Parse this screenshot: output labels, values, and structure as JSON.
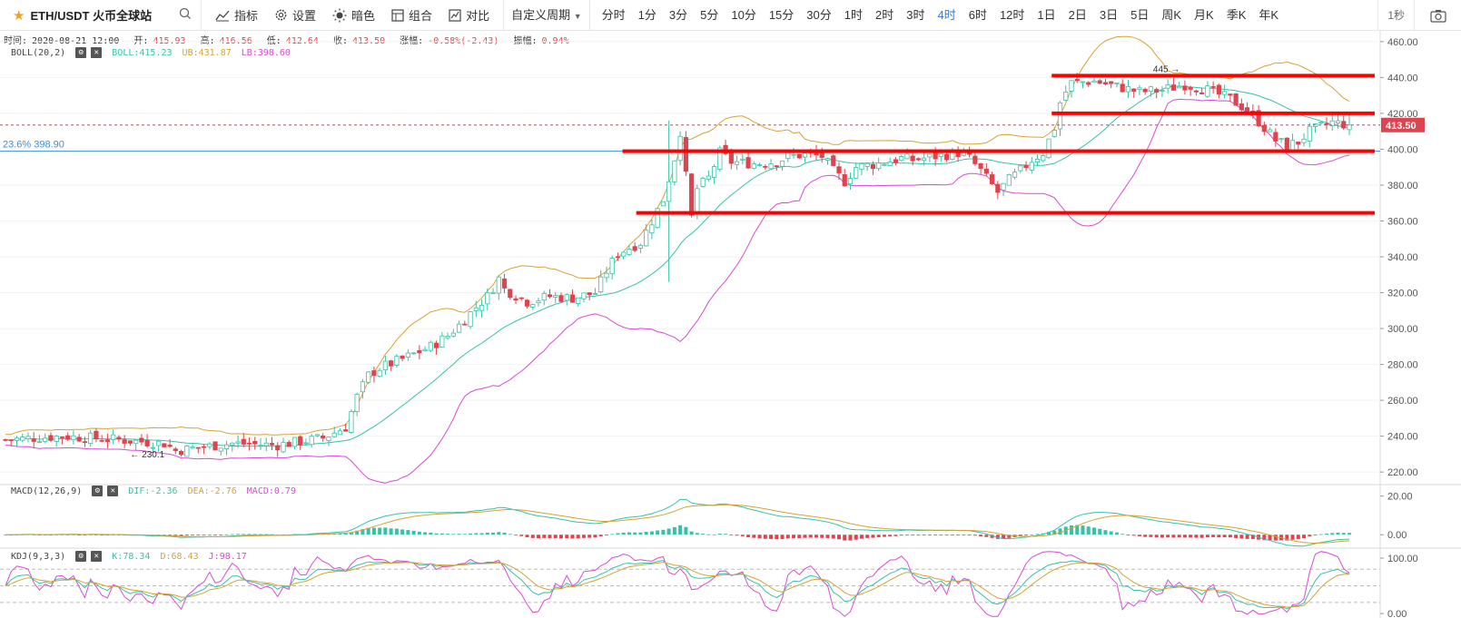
{
  "toolbar": {
    "symbol": "ETH/USDT 火币全球站",
    "buttons": [
      {
        "label": "指标",
        "icon": "indicator-icon"
      },
      {
        "label": "设置",
        "icon": "gear-icon"
      },
      {
        "label": "暗色",
        "icon": "sun-icon"
      },
      {
        "label": "组合",
        "icon": "layout-icon"
      },
      {
        "label": "对比",
        "icon": "compare-icon"
      }
    ],
    "custom_period": "自定义周期",
    "periods": [
      "分时",
      "1分",
      "3分",
      "5分",
      "10分",
      "15分",
      "30分",
      "1时",
      "2时",
      "3时",
      "4时",
      "6时",
      "12时",
      "1日",
      "2日",
      "3日",
      "5日",
      "周K",
      "月K",
      "季K",
      "年K"
    ],
    "active_period": "4时",
    "interval": "1秒"
  },
  "ohlc": {
    "time_label": "时间:",
    "time": "2020-08-21 12:00",
    "open_label": "开:",
    "open": "415.93",
    "high_label": "高:",
    "high": "416.56",
    "low_label": "低:",
    "low": "412.64",
    "close_label": "收:",
    "close": "413.50",
    "change_label": "涨幅:",
    "change": "-0.58%(-2.43)",
    "amp_label": "振幅:",
    "amp": "0.94%"
  },
  "boll": {
    "name": "BOLL(20,2)",
    "mid": "BOLL:415.23",
    "ub": "UB:431.87",
    "lb": "LB:398.60"
  },
  "macd": {
    "name": "MACD(12,26,9)",
    "dif": "DIF:-2.36",
    "dea": "DEA:-2.76",
    "macd": "MACD:0.79"
  },
  "kdj": {
    "name": "KDJ(9,3,3)",
    "k": "K:78.34",
    "d": "D:68.43",
    "j": "J:98.17"
  },
  "chart_data": {
    "type": "candlestick",
    "main_axis": {
      "ticks": [
        220,
        240,
        260,
        280,
        300,
        320,
        340,
        360,
        380,
        400,
        420,
        440,
        460
      ],
      "tick_labels": [
        "220.00",
        "240.00",
        "260.00",
        "280.00",
        "300.00",
        "320.00",
        "340.00",
        "360.00",
        "380.00",
        "400.00",
        "420.00",
        "440.00",
        "460.00"
      ],
      "range": [
        213,
        466
      ]
    },
    "last_price": {
      "value": 413.5,
      "label": "413.50"
    },
    "fib_line": {
      "value": 398.9,
      "label": "23.6% 398.90"
    },
    "annotations": [
      {
        "label": "445 →",
        "value": 445
      },
      {
        "label": "← 230.1",
        "value": 230.1
      }
    ],
    "horizontal_lines": [
      {
        "value": 441,
        "x_from": 0.762,
        "x_to": 1.0
      },
      {
        "value": 420,
        "x_from": 0.762,
        "x_to": 1.0
      },
      {
        "value": 398.9,
        "x_from": 0.451,
        "x_to": 1.0
      },
      {
        "value": 364.5,
        "x_from": 0.461,
        "x_to": 1.0
      }
    ],
    "close_path": [
      [
        0,
        238
      ],
      [
        10,
        240
      ],
      [
        20,
        238
      ],
      [
        28,
        236
      ],
      [
        30,
        232
      ],
      [
        40,
        236
      ],
      [
        48,
        235
      ],
      [
        56,
        239
      ],
      [
        60,
        245
      ],
      [
        62,
        262
      ],
      [
        64,
        274
      ],
      [
        66,
        278
      ],
      [
        70,
        283
      ],
      [
        75,
        290
      ],
      [
        78,
        296
      ],
      [
        80,
        302
      ],
      [
        83,
        312
      ],
      [
        85,
        318
      ],
      [
        87,
        328
      ],
      [
        88,
        322
      ],
      [
        92,
        315
      ],
      [
        96,
        318
      ],
      [
        100,
        317
      ],
      [
        104,
        320
      ],
      [
        106,
        332
      ],
      [
        108,
        342
      ],
      [
        112,
        348
      ],
      [
        114,
        360
      ],
      [
        116,
        372
      ],
      [
        118,
        395
      ],
      [
        119,
        410
      ],
      [
        120,
        385
      ],
      [
        121,
        362
      ],
      [
        122,
        378
      ],
      [
        124,
        384
      ],
      [
        126,
        398
      ],
      [
        128,
        393
      ],
      [
        132,
        392
      ],
      [
        136,
        393
      ],
      [
        138,
        396
      ],
      [
        141,
        397
      ],
      [
        144,
        396
      ],
      [
        146,
        388
      ],
      [
        148,
        382
      ],
      [
        150,
        390
      ],
      [
        154,
        392
      ],
      [
        158,
        395
      ],
      [
        160,
        394
      ],
      [
        164,
        396
      ],
      [
        168,
        398
      ],
      [
        170,
        395
      ],
      [
        172,
        388
      ],
      [
        174,
        380
      ],
      [
        175,
        376
      ],
      [
        177,
        383
      ],
      [
        179,
        388
      ],
      [
        181,
        394
      ],
      [
        183,
        398
      ],
      [
        185,
        412
      ],
      [
        186,
        426
      ],
      [
        187,
        432
      ],
      [
        188,
        437
      ],
      [
        192,
        438
      ],
      [
        196,
        435
      ],
      [
        200,
        432
      ],
      [
        204,
        433
      ],
      [
        208,
        436
      ],
      [
        212,
        433
      ],
      [
        216,
        428
      ],
      [
        218,
        424
      ],
      [
        220,
        419
      ],
      [
        222,
        412
      ],
      [
        224,
        405
      ],
      [
        226,
        402
      ],
      [
        228,
        404
      ],
      [
        230,
        410
      ],
      [
        234,
        415
      ],
      [
        237,
        413.5
      ]
    ],
    "macd_axis": {
      "ticks": [
        0,
        20
      ],
      "tick_labels": [
        "0.00",
        "20.00"
      ],
      "range": [
        -6,
        25
      ]
    },
    "kdj_axis": {
      "ticks": [
        0,
        100
      ],
      "tick_labels": [
        "0.00",
        "100.00"
      ],
      "range": [
        -8,
        118
      ]
    },
    "colors": {
      "up": "#36c2a8",
      "down": "#e0434d",
      "mid": "#36c2a8",
      "ub": "#d6a334",
      "lb": "#d94ad3",
      "k": "#36c2a8",
      "d": "#d6a334",
      "j": "#d94ad3",
      "fib": "#3b8fe0",
      "levels": "#ff0000"
    }
  }
}
